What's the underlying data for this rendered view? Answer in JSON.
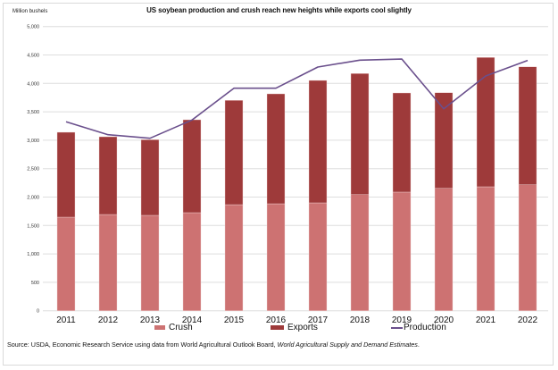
{
  "chart_data": {
    "type": "bar",
    "stacked": true,
    "title": "US soybean production and crush reach new heights while exports cool slightly",
    "ylabel": "Million bushels",
    "xlabel": "",
    "ylim": [
      0,
      5000
    ],
    "yticks": [
      0,
      500,
      1000,
      1500,
      2000,
      2500,
      3000,
      3500,
      4000,
      4500,
      5000
    ],
    "ytick_labels": [
      "0",
      "500",
      "1,000",
      "1,500",
      "2,000",
      "2,500",
      "3,000",
      "3,500",
      "4,000",
      "4,500",
      "5,000"
    ],
    "grid": true,
    "legend_position": "bottom",
    "categories": [
      "2011",
      "2012",
      "2013",
      "2014",
      "2015",
      "2016",
      "2017",
      "2018",
      "2019",
      "2020",
      "2021",
      "2022"
    ],
    "series": [
      {
        "name": "Crush",
        "kind": "bar",
        "color": "#cd7272",
        "values": [
          1646,
          1693,
          1678,
          1725,
          1866,
          1882,
          1898,
          2044,
          2087,
          2154,
          2181,
          2217
        ]
      },
      {
        "name": "Exports",
        "kind": "bar",
        "color": "#9e3a3a",
        "values": [
          1494,
          1368,
          1331,
          1635,
          1835,
          1934,
          2154,
          2129,
          1745,
          1683,
          2275,
          2075
        ]
      },
      {
        "name": "Production",
        "kind": "line",
        "color": "#6a4f8c",
        "values": [
          3324,
          3097,
          3035,
          3355,
          3915,
          3915,
          4288,
          4409,
          4429,
          3553,
          4130,
          4403
        ]
      }
    ]
  },
  "legend": {
    "items": [
      {
        "label": "Crush",
        "color": "#cd7272"
      },
      {
        "label": "Exports",
        "color": "#9e3a3a"
      },
      {
        "label": "Production",
        "color": "#6a4f8c"
      }
    ]
  },
  "source": {
    "prefix": "Source: USDA, Economic Research Service using data from World Agricultural Outlook Board, ",
    "italic": "World Agricultural Supply and Demand Estimates",
    "suffix": "."
  }
}
